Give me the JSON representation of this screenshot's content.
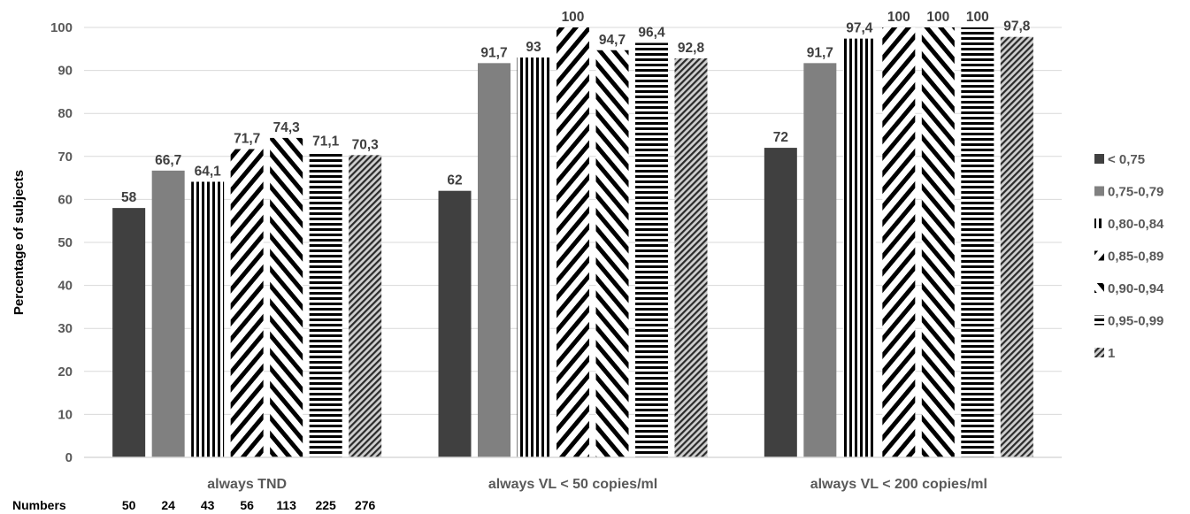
{
  "chart_data": {
    "type": "bar",
    "categories": [
      "always TND",
      "always VL < 50 copies/ml",
      "always VL < 200 copies/ml"
    ],
    "series": [
      {
        "name": "< 0,75",
        "values": [
          58,
          62,
          72
        ],
        "labels": [
          "58",
          "62",
          "72"
        ]
      },
      {
        "name": "0,75-0,79",
        "values": [
          66.7,
          91.7,
          91.7
        ],
        "labels": [
          "66,7",
          "91,7",
          "91,7"
        ]
      },
      {
        "name": "0,80-0,84",
        "values": [
          64.1,
          93,
          97.4
        ],
        "labels": [
          "64,1",
          "93",
          "97,4"
        ]
      },
      {
        "name": "0,85-0,89",
        "values": [
          71.7,
          100,
          100
        ],
        "labels": [
          "71,7",
          "100",
          "100"
        ]
      },
      {
        "name": "0,90-0,94",
        "values": [
          74.3,
          94.7,
          100
        ],
        "labels": [
          "74,3",
          "94,7",
          "100"
        ]
      },
      {
        "name": "0,95-0,99",
        "values": [
          71.1,
          96.4,
          100
        ],
        "labels": [
          "71,1",
          "96,4",
          "100"
        ]
      },
      {
        "name": "1",
        "values": [
          70.3,
          92.8,
          97.8
        ],
        "labels": [
          "70,3",
          "92,8",
          "97,8"
        ]
      }
    ],
    "ylabel": "Percentage of subjects",
    "ylim": [
      0,
      100
    ],
    "yticks": [
      0,
      10,
      20,
      30,
      40,
      50,
      60,
      70,
      80,
      90,
      100
    ],
    "grid": true,
    "legend_position": "right",
    "numbers": {
      "label": "Numbers",
      "values": [
        "50",
        "24",
        "43",
        "56",
        "113",
        "225",
        "276"
      ]
    }
  },
  "colors": {
    "dark": "#404040",
    "medium": "#808080",
    "grid": "#d9d9d9",
    "text": "#595959"
  }
}
